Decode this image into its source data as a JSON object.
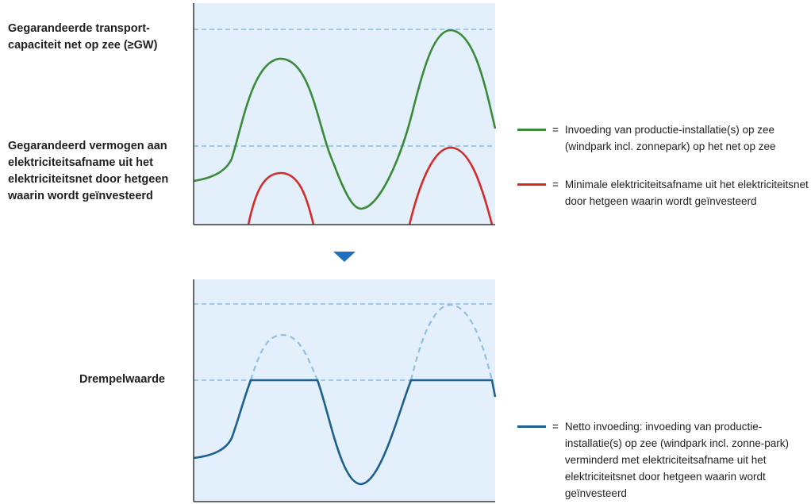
{
  "labels": {
    "transport_capacity": "Gegarandeerde transport-capaciteit net op zee (≥GW)",
    "guaranteed_power": "Gegarandeerd vermogen aan elektriciteitsafname uit het elektriciteitsnet door hetgeen waarin wordt geïnvesteerd",
    "threshold": "Drempelwaarde"
  },
  "legend": [
    {
      "color": "#3a8a3a",
      "eq": "=",
      "text": "Invoeding van productie-installatie(s) op zee (windpark incl. zonnepark) op het net op zee"
    },
    {
      "color": "#d42a2a",
      "eq": "=",
      "text": "Minimale elektriciteitsafname uit het elektriciteitsnet door hetgeen waarin wordt geïnvesteerd"
    },
    {
      "color": "#1d5f8e",
      "eq": "=",
      "text": "Netto invoeding: invoeding van productie-installatie(s) op zee (windpark incl. zonne-park) verminderd met elektriciteitsafname uit het elektriciteitsnet door hetgeen waarin wordt geïnvesteerd"
    }
  ],
  "colors": {
    "panel_bg": "#e3f0fb",
    "axis": "#3a3a3a",
    "dashed": "#7ab0d4",
    "green": "#3a8a3a",
    "red": "#d42a2a",
    "blue": "#1d5f8e",
    "blue_dashed": "#8fc0e0",
    "arrow": "#1f6fc0"
  },
  "icons": {
    "arrow": "down-arrow-icon"
  }
}
